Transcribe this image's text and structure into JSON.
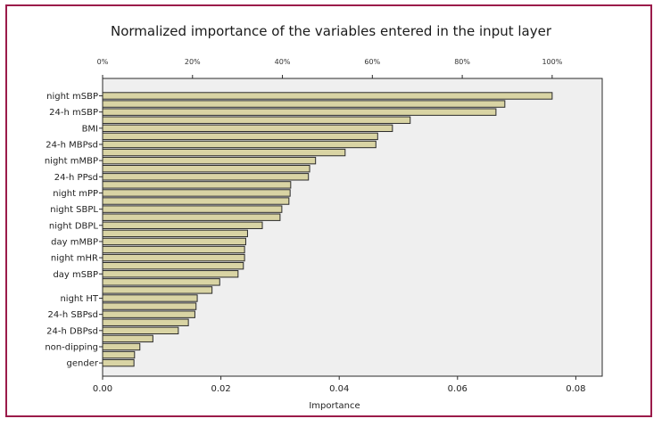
{
  "colors": {
    "frame": "#9b1b4a",
    "bar_fill": "#d9d4a4",
    "bar_stroke": "#2a2a2a",
    "plot_bg": "#efefef"
  },
  "chart_data": {
    "type": "bar",
    "orientation": "horizontal",
    "title": "Normalized importance of the variables entered in the input layer",
    "xlabel": "Importance",
    "ylabel": "",
    "xlim": [
      0,
      0.085
    ],
    "x_ticks": [
      "0.00",
      "0.02",
      "0.04",
      "0.06",
      "0.08"
    ],
    "top_axis_ticks": [
      "0%",
      "20%",
      "40%",
      "60%",
      "80%",
      "100%"
    ],
    "grid": false,
    "values": [
      0.076,
      0.068,
      0.0665,
      0.052,
      0.049,
      0.0465,
      0.0462,
      0.041,
      0.036,
      0.035,
      0.0348,
      0.0318,
      0.0317,
      0.0315,
      0.0303,
      0.03,
      0.027,
      0.0245,
      0.0242,
      0.024,
      0.024,
      0.0238,
      0.0229,
      0.0198,
      0.0185,
      0.016,
      0.0158,
      0.0156,
      0.0145,
      0.0128,
      0.0085,
      0.0063,
      0.0054,
      0.0053
    ],
    "labels": [
      "night mSBP",
      "",
      "24-h mSBP",
      "",
      "BMI",
      "",
      "24-h MBPsd",
      "",
      "night mMBP",
      "",
      "24-h PPsd",
      "",
      "night mPP",
      "",
      "night SBPL",
      "",
      "night DBPL",
      "",
      "day mMBP",
      "",
      "night mHR",
      "",
      "day mSBP",
      "",
      "",
      "night HT",
      "",
      "24-h SBPsd",
      "",
      "24-h DBPsd",
      "",
      "non-dipping",
      "",
      "gender"
    ]
  }
}
